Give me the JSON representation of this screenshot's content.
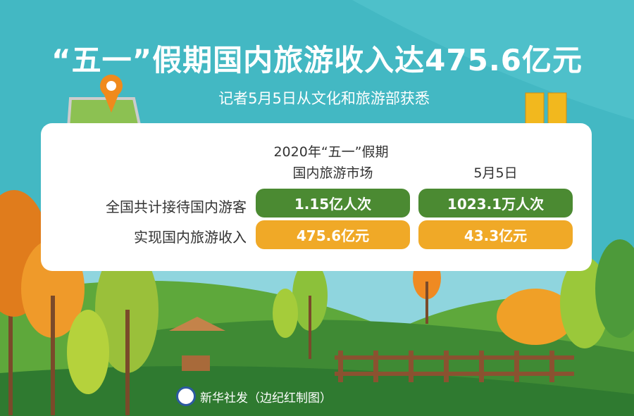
{
  "title": "“五一”假期国内旅游收入达475.6亿元",
  "subtitle": "记者5月5日从文化和旅游部获悉",
  "table": {
    "col1_header_line1": "2020年“五一”假期",
    "col1_header_line2": "国内旅游市场",
    "col2_header": "5月5日",
    "rows": [
      {
        "label": "全国共计接待国内游客",
        "col1": "1.15亿人次",
        "col2": "1023.1万人次",
        "color": "#4b8a32"
      },
      {
        "label": "实现国内旅游收入",
        "col1": "475.6亿元",
        "col2": "43.3亿元",
        "color": "#f0a927"
      }
    ]
  },
  "credit": "新华社发（边纪红制图）",
  "logo_text": "新华社",
  "colors": {
    "background": "#43b8c3",
    "green": "#4b8a32",
    "orange": "#f0a927"
  }
}
